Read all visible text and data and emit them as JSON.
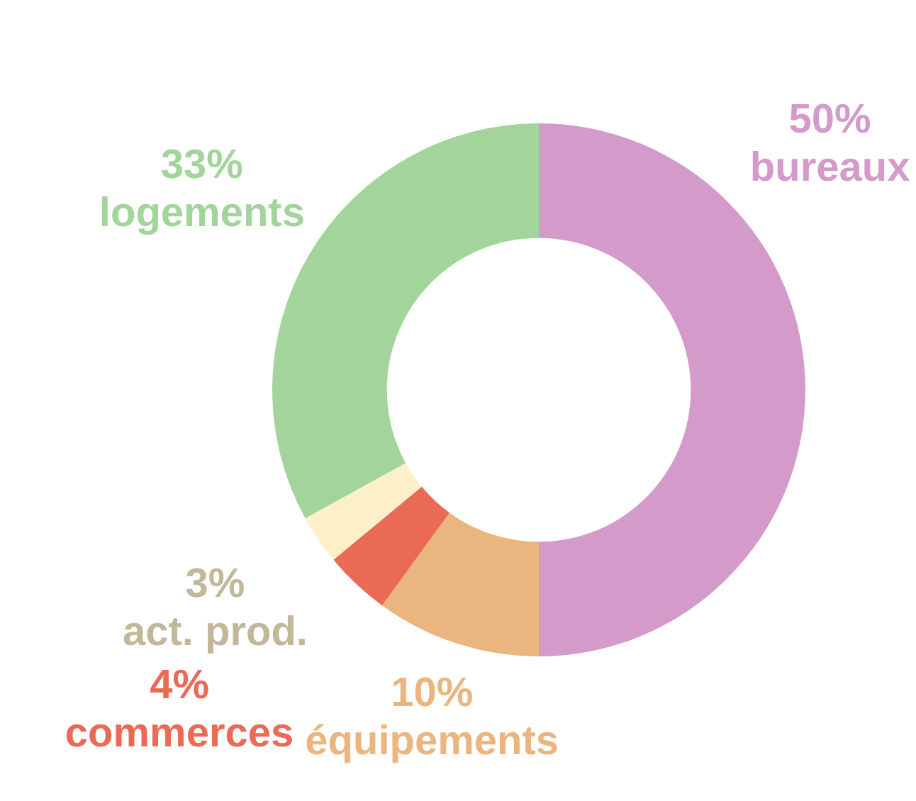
{
  "chart_data": {
    "type": "donut",
    "categories": [
      "bureaux",
      "équipements",
      "commerces",
      "act. prod.",
      "logements"
    ],
    "values": [
      50,
      10,
      4,
      3,
      33
    ],
    "colors": [
      "#d49ac9",
      "#ebb580",
      "#ea6a55",
      "#fdf0c8",
      "#a3d49b"
    ],
    "value_labels": [
      "50%",
      "10%",
      "4%",
      "3%",
      "33%"
    ],
    "legend": false
  }
}
